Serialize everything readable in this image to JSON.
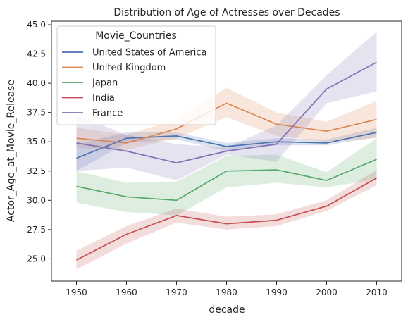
{
  "chart_data": {
    "type": "line",
    "title": "Distribution of Age of Actresses over Decades",
    "xlabel": "decade",
    "ylabel": "Actor_Age_at_Movie_Release",
    "x": [
      1950,
      1960,
      1970,
      1980,
      1990,
      2000,
      2010
    ],
    "xlim": [
      1945,
      2015
    ],
    "ylim": [
      23.1,
      45.3
    ],
    "yticks": [
      25.0,
      27.5,
      30.0,
      32.5,
      35.0,
      37.5,
      40.0,
      42.5,
      45.0
    ],
    "ytick_labels": [
      "25.0",
      "27.5",
      "30.0",
      "32.5",
      "35.0",
      "37.5",
      "40.0",
      "42.5",
      "45.0"
    ],
    "xtick_labels": [
      "1950",
      "1960",
      "1970",
      "1980",
      "1990",
      "2000",
      "2010"
    ],
    "grid": false,
    "legend": {
      "title": "Movie_Countries",
      "placement": "top-left"
    },
    "series": [
      {
        "name": "United States of America",
        "color": "#4c72b0",
        "values": [
          33.6,
          35.3,
          35.5,
          34.6,
          35.0,
          34.9,
          35.8
        ],
        "lower": [
          32.5,
          34.9,
          35.2,
          34.2,
          34.7,
          34.7,
          35.4
        ],
        "upper": [
          34.8,
          35.8,
          35.8,
          34.9,
          35.3,
          35.2,
          36.2
        ]
      },
      {
        "name": "United Kingdom",
        "color": "#dd8452",
        "values": [
          35.3,
          34.9,
          36.1,
          38.3,
          36.5,
          35.9,
          36.9
        ],
        "lower": [
          34.5,
          34.3,
          35.3,
          37.1,
          35.5,
          35.0,
          35.3
        ],
        "upper": [
          36.2,
          35.6,
          36.9,
          39.6,
          37.5,
          36.7,
          38.5
        ]
      },
      {
        "name": "Japan",
        "color": "#55a868",
        "values": [
          31.2,
          30.3,
          30.0,
          32.5,
          32.6,
          31.7,
          33.5
        ],
        "lower": [
          29.8,
          29.0,
          28.7,
          31.1,
          31.5,
          31.1,
          31.8
        ],
        "upper": [
          32.5,
          31.5,
          31.6,
          33.8,
          33.9,
          32.4,
          35.3
        ]
      },
      {
        "name": "India",
        "color": "#c44e52",
        "values": [
          24.9,
          27.1,
          28.7,
          28.0,
          28.3,
          29.5,
          31.9
        ],
        "lower": [
          24.1,
          26.3,
          28.1,
          27.5,
          27.8,
          29.1,
          31.3
        ],
        "upper": [
          25.7,
          27.8,
          29.3,
          28.6,
          28.8,
          30.0,
          32.6
        ]
      },
      {
        "name": "France",
        "color": "#8172b3",
        "values": [
          34.9,
          34.2,
          33.2,
          34.2,
          34.8,
          39.5,
          41.8
        ],
        "lower": [
          32.5,
          32.8,
          31.7,
          33.9,
          33.3,
          38.3,
          39.3
        ],
        "upper": [
          37.3,
          35.6,
          34.8,
          34.5,
          36.4,
          40.7,
          44.4
        ]
      }
    ]
  }
}
